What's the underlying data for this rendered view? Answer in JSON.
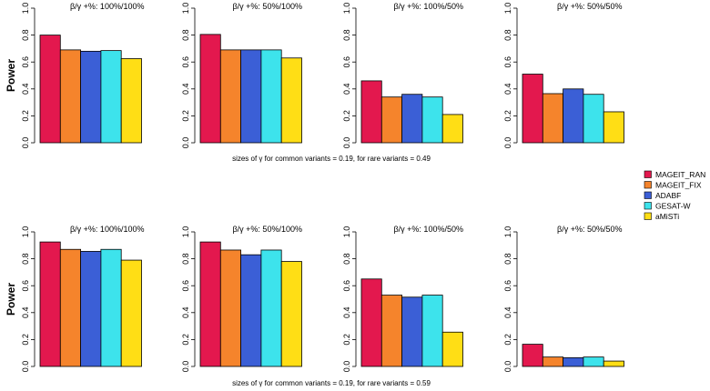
{
  "chart_data": {
    "type": "bar",
    "series_names": [
      "MAGEIT_RAN",
      "MAGEIT_FIX",
      "ADABF",
      "GESAT-W",
      "aMiSTi"
    ],
    "colors": {
      "MAGEIT_RAN": "#e3184e",
      "MAGEIT_FIX": "#f5842c",
      "ADABF": "#3b5fd6",
      "GESAT-W": "#3de3ec",
      "aMiSTi": "#ffde15"
    },
    "ylabel": "Power",
    "ylim": [
      0,
      1
    ],
    "yticks": [
      "0.0",
      "0.2",
      "0.4",
      "0.6",
      "0.8",
      "1.0"
    ],
    "rows": [
      {
        "caption": "sizes of γ for common variants = 0.19, for rare variants = 0.49",
        "panels": [
          {
            "title": "β/γ +%: 100%/100%",
            "values": [
              0.8,
              0.69,
              0.68,
              0.685,
              0.625
            ]
          },
          {
            "title": "β/γ +%: 50%/100%",
            "values": [
              0.805,
              0.69,
              0.69,
              0.69,
              0.63
            ]
          },
          {
            "title": "β/γ +%: 100%/50%",
            "values": [
              0.46,
              0.34,
              0.36,
              0.34,
              0.21
            ]
          },
          {
            "title": "β/γ +%: 50%/50%",
            "values": [
              0.51,
              0.365,
              0.4,
              0.36,
              0.23
            ]
          }
        ]
      },
      {
        "caption": "sizes of γ for common variants = 0.19, for rare variants = 0.59",
        "panels": [
          {
            "title": "β/γ +%: 100%/100%",
            "values": [
              0.925,
              0.87,
              0.855,
              0.87,
              0.79
            ]
          },
          {
            "title": "β/γ +%: 50%/100%",
            "values": [
              0.925,
              0.865,
              0.83,
              0.865,
              0.78
            ]
          },
          {
            "title": "β/γ +%: 100%/50%",
            "values": [
              0.65,
              0.53,
              0.515,
              0.53,
              0.255
            ]
          },
          {
            "title": "β/γ +%: 50%/50%",
            "values": [
              0.165,
              0.07,
              0.065,
              0.07,
              0.04
            ]
          }
        ]
      }
    ],
    "legend_position": "right"
  }
}
